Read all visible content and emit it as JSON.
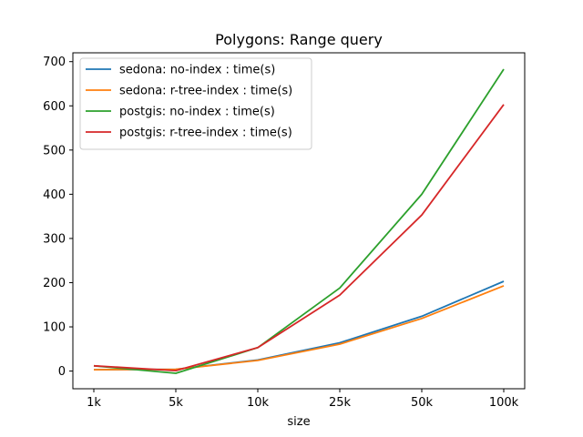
{
  "chart_data": {
    "type": "line",
    "title": "Polygons: Range query",
    "xlabel": "size",
    "ylabel": "",
    "categories": [
      "1k",
      "5k",
      "10k",
      "25k",
      "50k",
      "100k"
    ],
    "ylim": [
      -40,
      720
    ],
    "yticks": [
      0,
      100,
      200,
      300,
      400,
      500,
      600,
      700
    ],
    "grid": false,
    "legend_position": "top-left",
    "series": [
      {
        "name": "sedona: no-index : time(s)",
        "color": "#1f77b4",
        "values": [
          3,
          4,
          25,
          64,
          124,
          203
        ]
      },
      {
        "name": "sedona: r-tree-index : time(s)",
        "color": "#ff7f0e",
        "values": [
          3,
          4,
          24,
          61,
          119,
          193
        ]
      },
      {
        "name": "postgis: no-index : time(s)",
        "color": "#2ca02c",
        "values": [
          12,
          -5,
          53,
          188,
          400,
          683
        ]
      },
      {
        "name": "postgis: r-tree-index : time(s)",
        "color": "#d62728",
        "values": [
          12,
          1,
          53,
          172,
          353,
          603
        ]
      }
    ]
  }
}
